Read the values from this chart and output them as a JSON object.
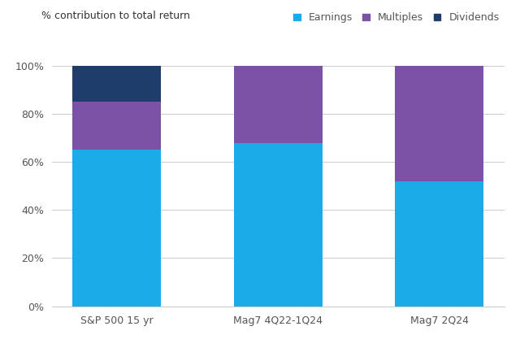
{
  "categories": [
    "S&P 500 15 yr",
    "Mag7 4Q22-1Q24",
    "Mag7 2Q24"
  ],
  "earnings": [
    65,
    68,
    52
  ],
  "multiples": [
    20,
    32,
    48
  ],
  "dividends": [
    15,
    0,
    0
  ],
  "colors": {
    "earnings": "#1AACE8",
    "multiples": "#7B52A6",
    "dividends": "#1F3D6B"
  },
  "legend_labels": [
    "Earnings",
    "Multiples",
    "Dividends"
  ],
  "ylabel": "% contribution to total return",
  "yticks": [
    0,
    20,
    40,
    60,
    80,
    100
  ],
  "ytick_labels": [
    "0%",
    "20%",
    "40%",
    "60%",
    "80%",
    "100%"
  ],
  "bar_width": 0.55,
  "background_color": "#FFFFFF",
  "grid_color": "#CCCCCC",
  "label_fontsize": 9,
  "tick_fontsize": 9,
  "legend_fontsize": 9
}
